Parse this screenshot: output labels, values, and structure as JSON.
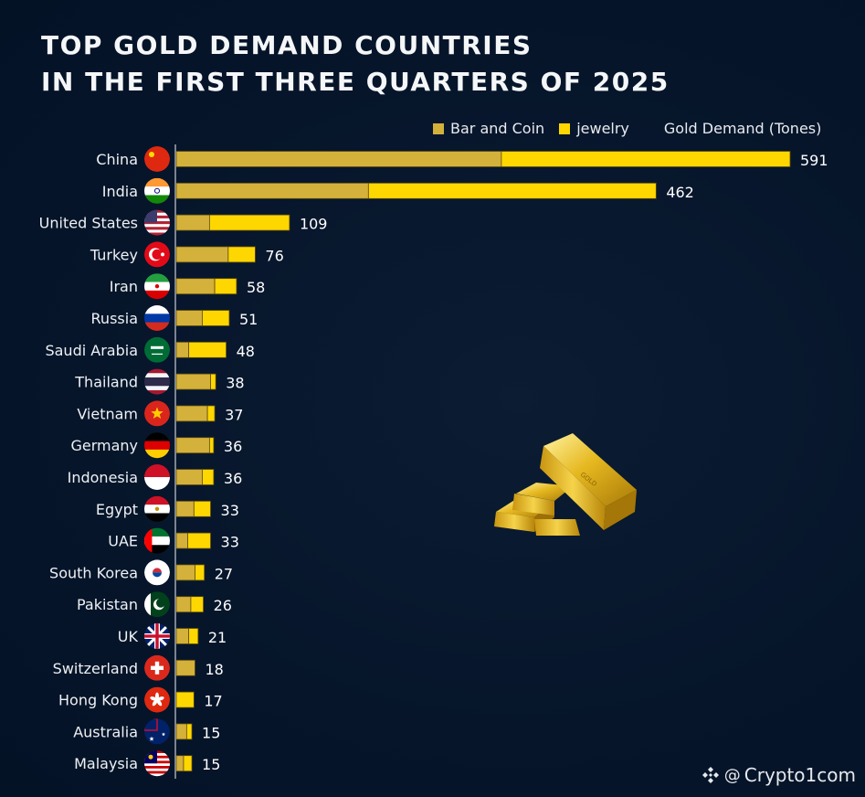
{
  "chart_data": {
    "type": "bar",
    "orientation": "horizontal",
    "stacked": true,
    "title": "TOP GOLD DEMAND COUNTRIES IN THE FIRST THREE QUARTERS OF 2025",
    "title_lines": [
      "TOP GOLD DEMAND COUNTRIES",
      "IN THE FIRST THREE QUARTERS OF 2025"
    ],
    "xlabel": "Gold Demand (Tones)",
    "ylabel": "",
    "legend_position": "top-right",
    "grid": false,
    "xlim": [
      0,
      591
    ],
    "categories": [
      "China",
      "India",
      "United States",
      "Turkey",
      "Iran",
      "Russia",
      "Saudi Arabia",
      "Thailand",
      "Vietnam",
      "Germany",
      "Indonesia",
      "Egypt",
      "UAE",
      "South Korea",
      "Pakistan",
      "UK",
      "Switzerland",
      "Hong Kong",
      "Australia",
      "Malaysia"
    ],
    "series": [
      {
        "name": "Bar and Coin",
        "color": "#d4b13a",
        "values": [
          313,
          185,
          32,
          50,
          37,
          25,
          12,
          33,
          30,
          32,
          25,
          17,
          11,
          18,
          14,
          12,
          18,
          0,
          10,
          7
        ]
      },
      {
        "name": "jewelry",
        "color": "#ffd700",
        "values": [
          278,
          277,
          77,
          26,
          21,
          26,
          36,
          5,
          7,
          4,
          11,
          16,
          22,
          9,
          12,
          9,
          0,
          17,
          5,
          8
        ]
      }
    ],
    "totals": [
      591,
      462,
      109,
      76,
      58,
      51,
      48,
      38,
      37,
      36,
      36,
      33,
      33,
      27,
      26,
      21,
      18,
      17,
      15,
      15
    ]
  },
  "flags": [
    "china-flag-icon",
    "india-flag-icon",
    "usa-flag-icon",
    "turkey-flag-icon",
    "iran-flag-icon",
    "russia-flag-icon",
    "saudi-arabia-flag-icon",
    "thailand-flag-icon",
    "vietnam-flag-icon",
    "germany-flag-icon",
    "indonesia-flag-icon",
    "egypt-flag-icon",
    "uae-flag-icon",
    "south-korea-flag-icon",
    "pakistan-flag-icon",
    "uk-flag-icon",
    "switzerland-flag-icon",
    "hong-kong-flag-icon",
    "australia-flag-icon",
    "malaysia-flag-icon"
  ],
  "watermark": {
    "icon": "binance-logo-icon",
    "at": "@",
    "handle": "Crypto1com"
  },
  "colors": {
    "background": "#07162a",
    "bar_and_coin": "#d4b13a",
    "jewelry": "#ffd700",
    "text": "#ffffff"
  }
}
